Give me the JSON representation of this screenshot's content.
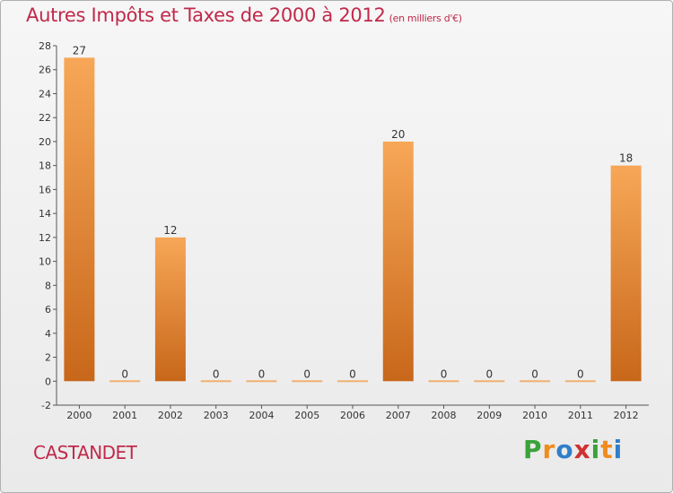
{
  "header": {
    "title": "Autres Impôts et Taxes de 2000 à 2012",
    "unit": "(en milliers d'€)"
  },
  "location": "CASTANDET",
  "logo": {
    "text": "Proxiti",
    "letters": [
      "P",
      "r",
      "o",
      "x",
      "i",
      "t",
      "i"
    ],
    "colors": [
      "#3aa23a",
      "#f08c1e",
      "#2f7fc8",
      "#d03030",
      "#3aa23a",
      "#f08c1e",
      "#2f7fc8"
    ]
  },
  "chart_data": {
    "type": "bar",
    "title": "Autres Impôts et Taxes de 2000 à 2012",
    "subtitle": "(en milliers d'€)",
    "categories": [
      "2000",
      "2001",
      "2002",
      "2003",
      "2004",
      "2005",
      "2006",
      "2007",
      "2008",
      "2009",
      "2010",
      "2011",
      "2012"
    ],
    "values": [
      27,
      0,
      12,
      0,
      0,
      0,
      0,
      20,
      0,
      0,
      0,
      0,
      18
    ],
    "data_labels": [
      "27",
      "0",
      "12",
      "0",
      "0",
      "0",
      "0",
      "20",
      "0",
      "0",
      "0",
      "0",
      "18"
    ],
    "ylim": [
      -2,
      28
    ],
    "yticks": [
      -2,
      0,
      2,
      4,
      6,
      8,
      10,
      12,
      14,
      16,
      18,
      20,
      22,
      24,
      26,
      28
    ],
    "grid": false,
    "legend": "none",
    "colors": {
      "bar_top": "#f7a757",
      "bar_bottom": "#c8671a",
      "axis": "#555555",
      "text": "#333333",
      "zero_bar": "#f0b070"
    }
  }
}
